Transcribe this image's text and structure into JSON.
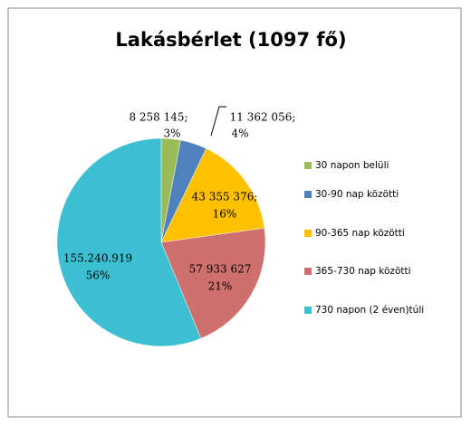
{
  "chart_data": {
    "type": "pie",
    "title": "Lakásbérlet (1097 fő)",
    "categories": [
      "30 napon belüli",
      "30-90 nap közötti",
      "90-365 nap közötti",
      "365-730 nap közötti",
      "730 napon (2 éven)túli"
    ],
    "values": [
      8258145,
      11362056,
      43355376,
      57933627,
      155240919
    ],
    "value_labels": [
      "8 258 145;",
      "11 362 056;",
      "43 355 376;",
      "57 933 627",
      "155.240.919"
    ],
    "percent_labels": [
      "3%",
      "4%",
      "16%",
      "21%",
      "56%"
    ],
    "colors": [
      "#9bbb59",
      "#4f81bd",
      "#ffc000",
      "#d0706e",
      "#3cbfd0"
    ],
    "legend": "right"
  }
}
